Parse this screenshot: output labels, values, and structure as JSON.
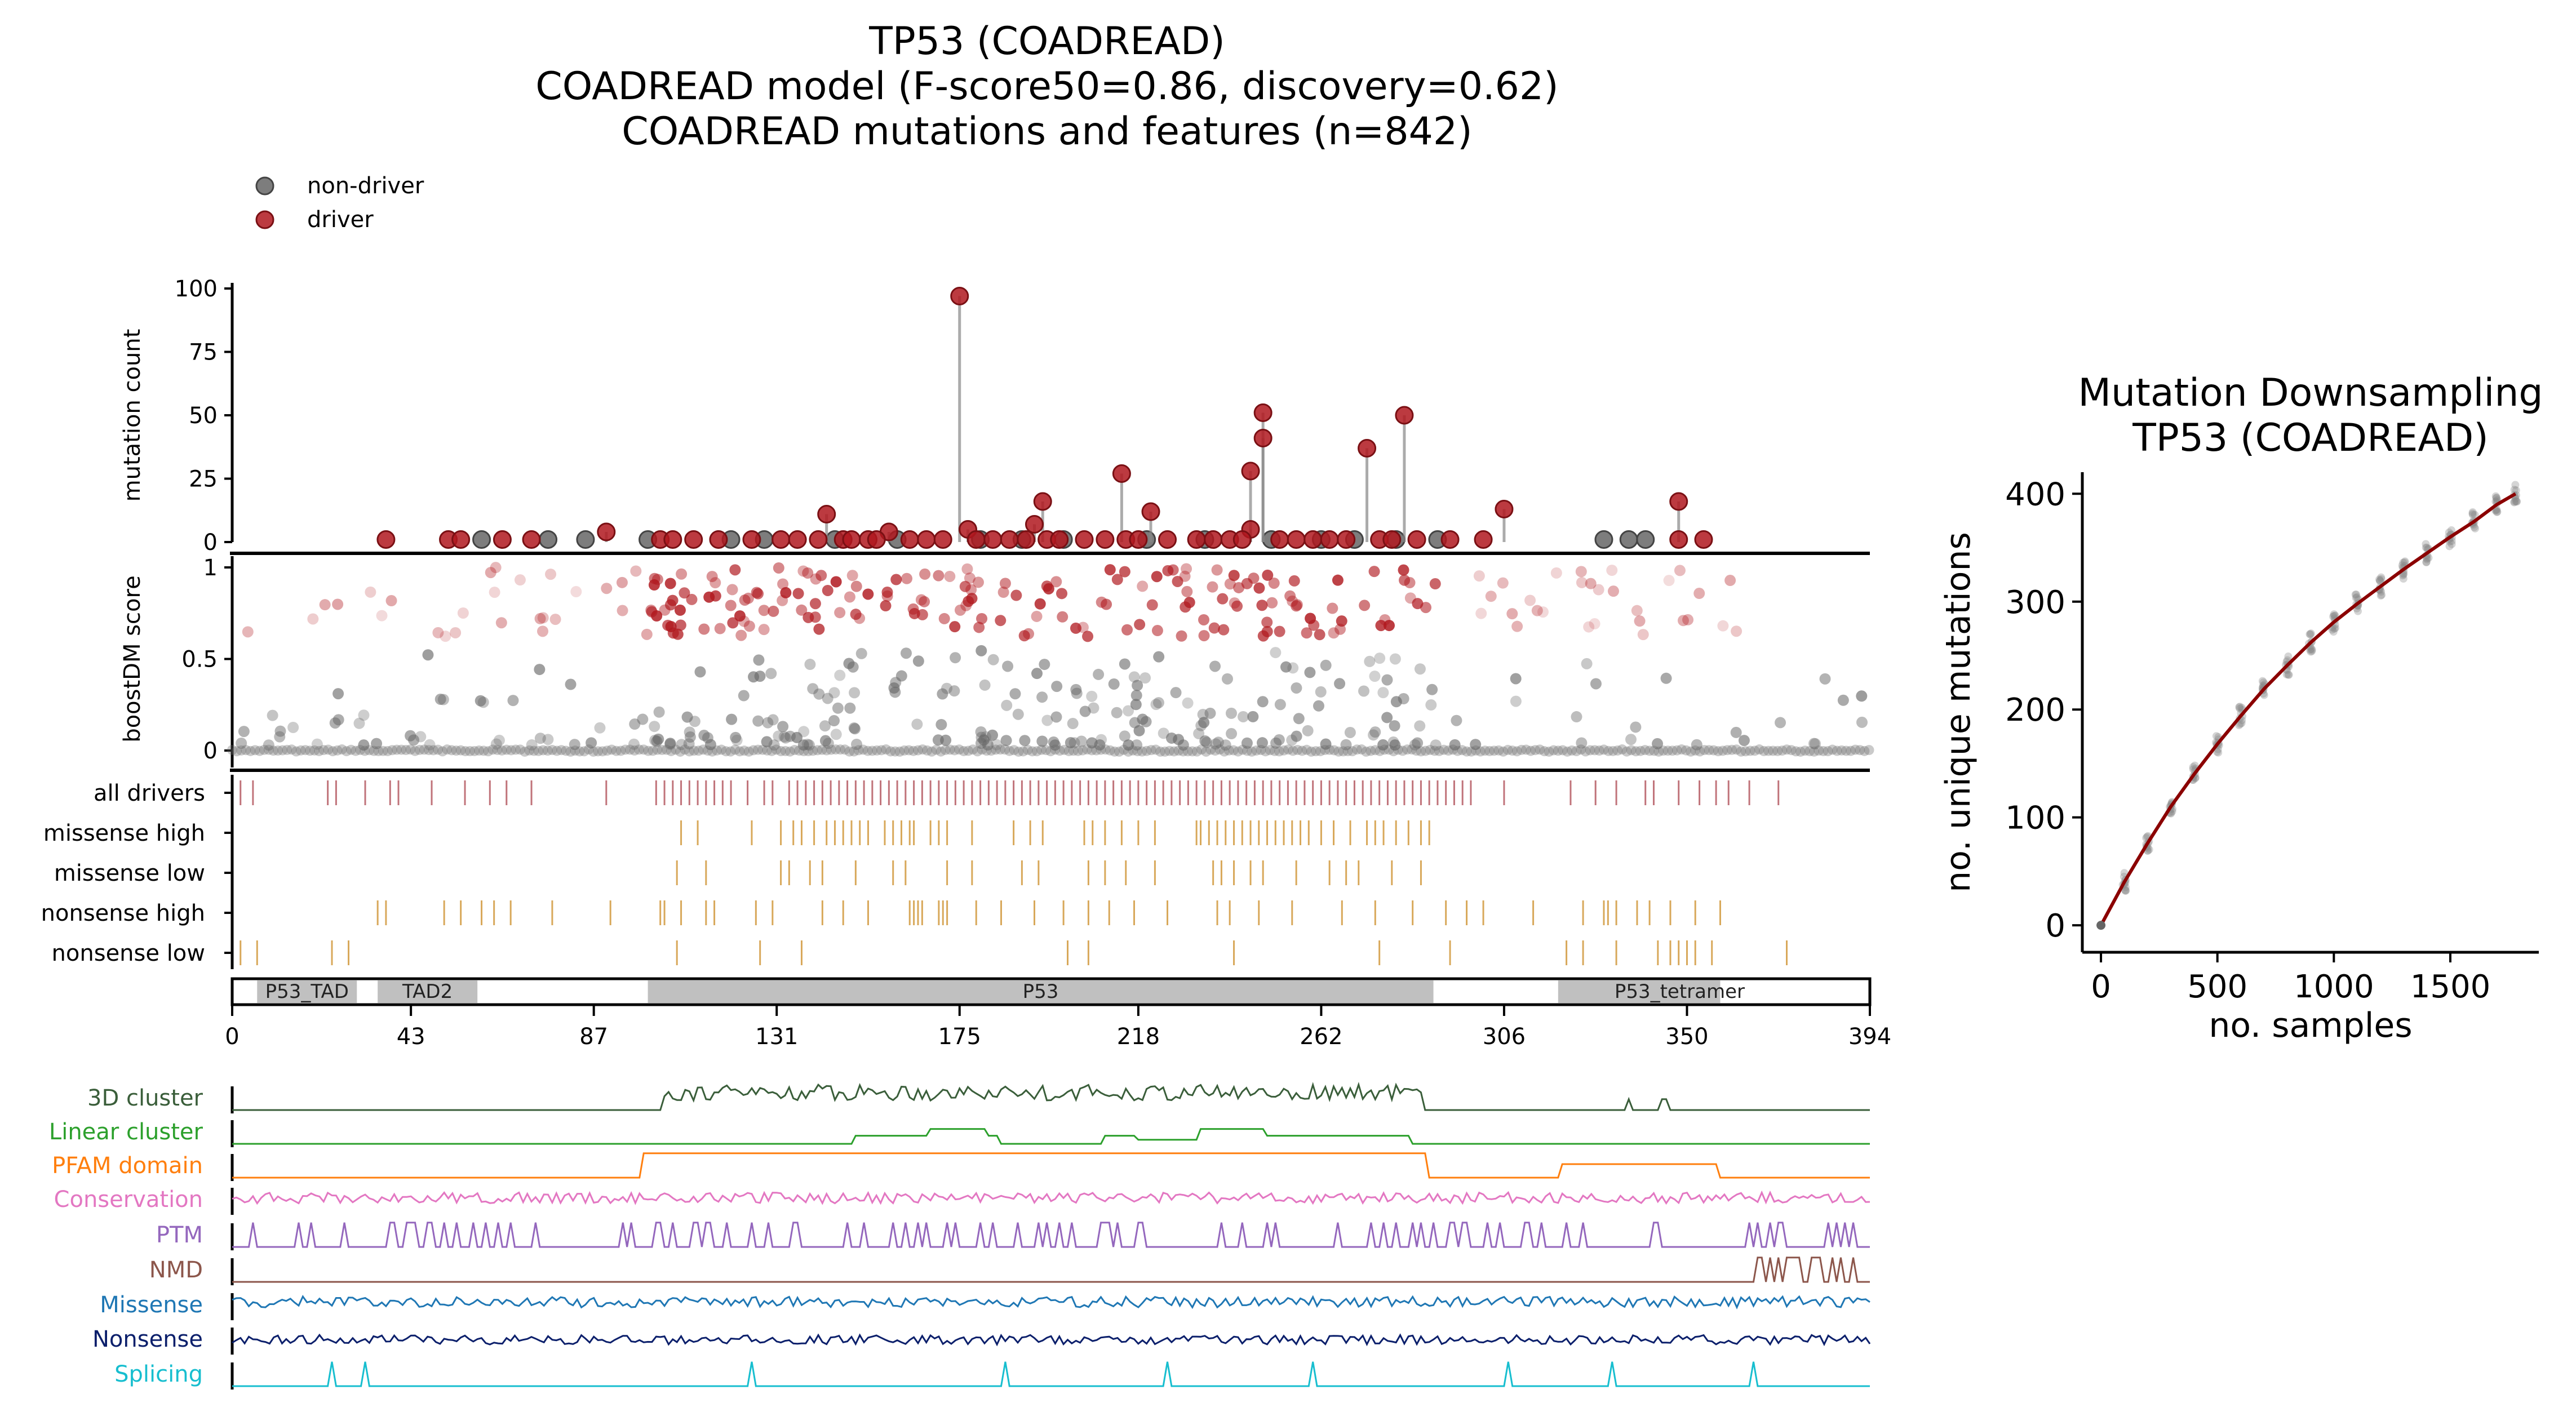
{
  "figure": {
    "title_lines": [
      "TP53 (COADREAD)",
      "COADREAD model (F-score50=0.86, discovery=0.62)",
      "COADREAD mutations and features (n=842)"
    ]
  },
  "legend": {
    "entries": [
      {
        "label": "non-driver",
        "color": "#666666"
      },
      {
        "label": "driver",
        "color": "#b0181e"
      }
    ]
  },
  "colors": {
    "driver": "#b0181e",
    "nondriver": "#666666",
    "drivers_tick": "#c0737a",
    "class_tick": "#d8a85a",
    "domain_fill": "#c0c0c0"
  },
  "chart_data": [
    {
      "id": "needle",
      "type": "scatter",
      "ylabel": "mutation count",
      "xlim": [
        0,
        394
      ],
      "ylim": [
        0,
        100
      ],
      "yticks": [
        0,
        25,
        50,
        75,
        100
      ],
      "series": [
        {
          "name": "driver",
          "points": [
            [
              175,
              97
            ],
            [
              195,
              16
            ],
            [
              214,
              27
            ],
            [
              221,
              12
            ],
            [
              245,
              28
            ],
            [
              248,
              51
            ],
            [
              248,
              41
            ],
            [
              273,
              37
            ],
            [
              282,
              50
            ],
            [
              306,
              13
            ],
            [
              143,
              11
            ],
            [
              193,
              7
            ],
            [
              245,
              5
            ],
            [
              158,
              4
            ],
            [
              177,
              5
            ],
            [
              90,
              4
            ],
            [
              37,
              1
            ],
            [
              52,
              1
            ],
            [
              55,
              1
            ],
            [
              65,
              1
            ],
            [
              72,
              1
            ],
            [
              103,
              1
            ],
            [
              106,
              1
            ],
            [
              111,
              1
            ],
            [
              117,
              1
            ],
            [
              125,
              1
            ],
            [
              132,
              1
            ],
            [
              136,
              1
            ],
            [
              141,
              1
            ],
            [
              147,
              1
            ],
            [
              149,
              1
            ],
            [
              153,
              1
            ],
            [
              155,
              1
            ],
            [
              163,
              1
            ],
            [
              167,
              1
            ],
            [
              171,
              1
            ],
            [
              179,
              1
            ],
            [
              183,
              1
            ],
            [
              187,
              1
            ],
            [
              191,
              1
            ],
            [
              196,
              1
            ],
            [
              199,
              1
            ],
            [
              205,
              1
            ],
            [
              210,
              1
            ],
            [
              215,
              1
            ],
            [
              218,
              1
            ],
            [
              225,
              1
            ],
            [
              232,
              1
            ],
            [
              236,
              1
            ],
            [
              240,
              1
            ],
            [
              243,
              1
            ],
            [
              252,
              1
            ],
            [
              256,
              1
            ],
            [
              260,
              1
            ],
            [
              264,
              1
            ],
            [
              268,
              1
            ],
            [
              276,
              1
            ],
            [
              279,
              1
            ],
            [
              285,
              1
            ],
            [
              293,
              1
            ],
            [
              301,
              1
            ],
            [
              348,
              16
            ],
            [
              348,
              1
            ],
            [
              354,
              1
            ]
          ]
        },
        {
          "name": "non-driver",
          "points": [
            [
              60,
              1
            ],
            [
              76,
              1
            ],
            [
              85,
              1
            ],
            [
              100,
              1
            ],
            [
              120,
              1
            ],
            [
              128,
              1
            ],
            [
              145,
              1
            ],
            [
              160,
              1
            ],
            [
              180,
              1
            ],
            [
              190,
              1
            ],
            [
              200,
              1
            ],
            [
              220,
              1
            ],
            [
              234,
              1
            ],
            [
              250,
              1
            ],
            [
              262,
              1
            ],
            [
              270,
              1
            ],
            [
              280,
              1
            ],
            [
              290,
              1
            ],
            [
              330,
              1
            ],
            [
              336,
              1
            ],
            [
              340,
              1
            ]
          ]
        }
      ]
    },
    {
      "id": "score",
      "type": "scatter",
      "ylabel": "boostDM score",
      "xlim": [
        0,
        394
      ],
      "ylim": [
        0,
        1
      ],
      "yticks": [
        0,
        0.5,
        1
      ]
    },
    {
      "id": "tracks",
      "type": "table",
      "rows": [
        {
          "label": "all drivers",
          "positions": [
            2,
            5,
            23,
            25,
            32,
            38,
            40,
            48,
            56,
            62,
            66,
            72,
            90,
            102,
            104,
            106,
            108,
            110,
            112,
            114,
            116,
            118,
            120,
            124,
            128,
            130,
            134,
            136,
            138,
            140,
            142,
            144,
            146,
            148,
            150,
            152,
            154,
            156,
            158,
            160,
            162,
            164,
            166,
            168,
            170,
            172,
            174,
            176,
            178,
            180,
            182,
            184,
            186,
            188,
            190,
            192,
            194,
            196,
            198,
            200,
            202,
            204,
            206,
            208,
            210,
            212,
            214,
            216,
            218,
            220,
            222,
            224,
            226,
            228,
            230,
            232,
            234,
            236,
            238,
            240,
            242,
            244,
            246,
            248,
            250,
            252,
            254,
            256,
            258,
            260,
            262,
            264,
            266,
            268,
            270,
            272,
            274,
            276,
            278,
            280,
            282,
            284,
            286,
            288,
            290,
            292,
            294,
            296,
            298,
            306,
            322,
            328,
            333,
            340,
            342,
            348,
            353,
            357,
            360,
            365,
            372
          ]
        },
        {
          "label": "missense high",
          "positions": [
            108,
            112,
            125,
            132,
            135,
            137,
            140,
            143,
            145,
            147,
            149,
            151,
            153,
            157,
            159,
            161,
            163,
            164,
            168,
            170,
            172,
            178,
            188,
            192,
            195,
            205,
            207,
            210,
            214,
            218,
            222,
            232,
            233,
            235,
            237,
            239,
            241,
            243,
            245,
            247,
            249,
            251,
            253,
            255,
            257,
            259,
            262,
            265,
            269,
            273,
            275,
            277,
            280,
            283,
            286,
            288
          ]
        },
        {
          "label": "missense low",
          "positions": [
            107,
            114,
            132,
            134,
            139,
            142,
            150,
            159,
            162,
            172,
            178,
            190,
            194,
            206,
            210,
            215,
            222,
            236,
            238,
            241,
            245,
            248,
            256,
            264,
            268,
            271,
            279,
            286
          ]
        },
        {
          "label": "nonsense high",
          "positions": [
            35,
            37,
            51,
            55,
            60,
            63,
            67,
            77,
            91,
            103,
            104,
            108,
            114,
            116,
            126,
            130,
            142,
            147,
            153,
            163,
            164,
            165,
            166,
            170,
            171,
            172,
            179,
            185,
            193,
            200,
            206,
            211,
            217,
            225,
            237,
            240,
            247,
            255,
            267,
            275,
            284,
            292,
            297,
            301,
            313,
            325,
            330,
            331,
            333,
            338,
            341,
            346,
            352,
            358
          ]
        },
        {
          "label": "nonsense low",
          "positions": [
            2,
            6,
            24,
            28,
            107,
            127,
            137,
            201,
            206,
            241,
            276,
            293,
            321,
            325,
            333,
            343,
            346,
            348,
            350,
            352,
            356,
            374
          ]
        }
      ]
    },
    {
      "id": "domains",
      "type": "bar",
      "xlim": [
        0,
        394
      ],
      "xticks": [
        0,
        43,
        87,
        131,
        175,
        218,
        262,
        306,
        350,
        394
      ],
      "domains": [
        {
          "name": "P53_TAD",
          "start": 6,
          "end": 30
        },
        {
          "name": "TAD2",
          "start": 35,
          "end": 59
        },
        {
          "name": "P53",
          "start": 100,
          "end": 289
        },
        {
          "name": "P53_tetramer",
          "start": 319,
          "end": 358
        }
      ]
    },
    {
      "id": "features",
      "type": "line",
      "xlim": [
        0,
        394
      ],
      "tracks": [
        {
          "label": "3D cluster",
          "color": "#3a5e3a"
        },
        {
          "label": "Linear cluster",
          "color": "#2ca02c"
        },
        {
          "label": "PFAM domain",
          "color": "#ff7f0e"
        },
        {
          "label": "Conservation",
          "color": "#e377c2"
        },
        {
          "label": "PTM",
          "color": "#9467bd"
        },
        {
          "label": "NMD",
          "color": "#8c564b"
        },
        {
          "label": "Missense",
          "color": "#1f77b4"
        },
        {
          "label": "Nonsense",
          "color": "#0b1f6b"
        },
        {
          "label": "Splicing",
          "color": "#17becf"
        }
      ]
    },
    {
      "id": "downsampling",
      "type": "line",
      "title": "Mutation Downsampling\nTP53 (COADREAD)",
      "title_lines": [
        "Mutation Downsampling",
        "TP53 (COADREAD)"
      ],
      "xlabel": "no. samples",
      "ylabel": "no. unique mutations",
      "xlim": [
        -80,
        1880
      ],
      "ylim": [
        -25,
        420
      ],
      "xticks": [
        0,
        500,
        1000,
        1500
      ],
      "yticks": [
        0,
        100,
        200,
        300,
        400
      ],
      "x": [
        0,
        100,
        200,
        300,
        400,
        500,
        600,
        700,
        800,
        900,
        1000,
        1100,
        1200,
        1300,
        1400,
        1500,
        1600,
        1700,
        1780
      ],
      "y": [
        0,
        40,
        76,
        110,
        140,
        168,
        194,
        219,
        241,
        262,
        281,
        298,
        314,
        330,
        345,
        360,
        374,
        390,
        400
      ]
    }
  ]
}
